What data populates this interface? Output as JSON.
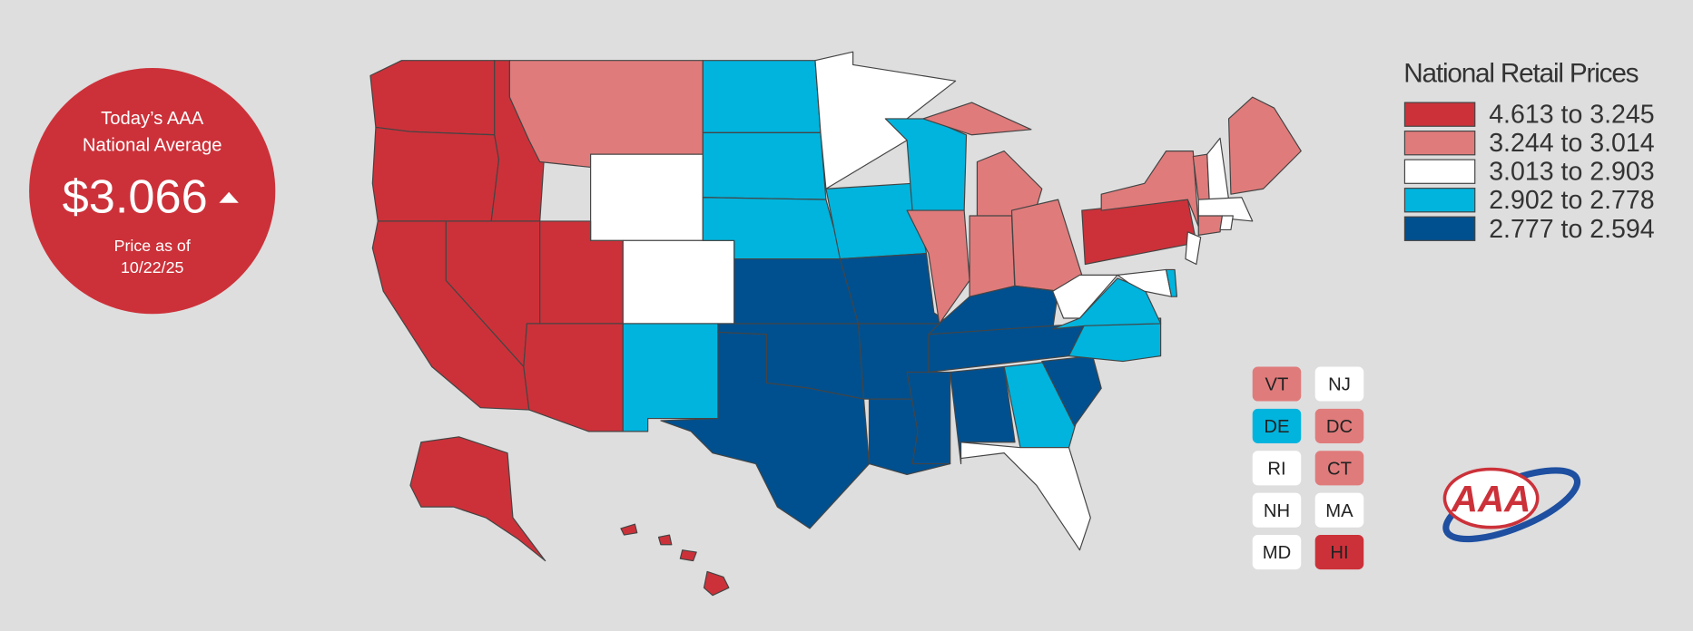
{
  "summary": {
    "line1": "Today’s AAA",
    "line2": "National Average",
    "price": "$3.066",
    "date_label": "Price as of",
    "date": "10/22/25"
  },
  "legend": {
    "title": "National Retail Prices",
    "items": [
      {
        "label": "4.613 to 3.245",
        "color": "#cc3139"
      },
      {
        "label": "3.244 to 3.014",
        "color": "#e07b7b"
      },
      {
        "label": "3.013 to 2.903",
        "color": "#ffffff"
      },
      {
        "label": "2.902 to 2.778",
        "color": "#00b4dd"
      },
      {
        "label": "2.777 to 2.594",
        "color": "#00508f"
      }
    ]
  },
  "small_states": [
    {
      "label": "VT",
      "color": "#e07b7b"
    },
    {
      "label": "NJ",
      "color": "#ffffff"
    },
    {
      "label": "DE",
      "color": "#00b4dd"
    },
    {
      "label": "DC",
      "color": "#e07b7b"
    },
    {
      "label": "RI",
      "color": "#ffffff"
    },
    {
      "label": "CT",
      "color": "#e07b7b"
    },
    {
      "label": "NH",
      "color": "#ffffff"
    },
    {
      "label": "MA",
      "color": "#ffffff"
    },
    {
      "label": "MD",
      "color": "#ffffff"
    },
    {
      "label": "HI",
      "color": "#cc3139"
    }
  ],
  "logo": "AAA"
}
